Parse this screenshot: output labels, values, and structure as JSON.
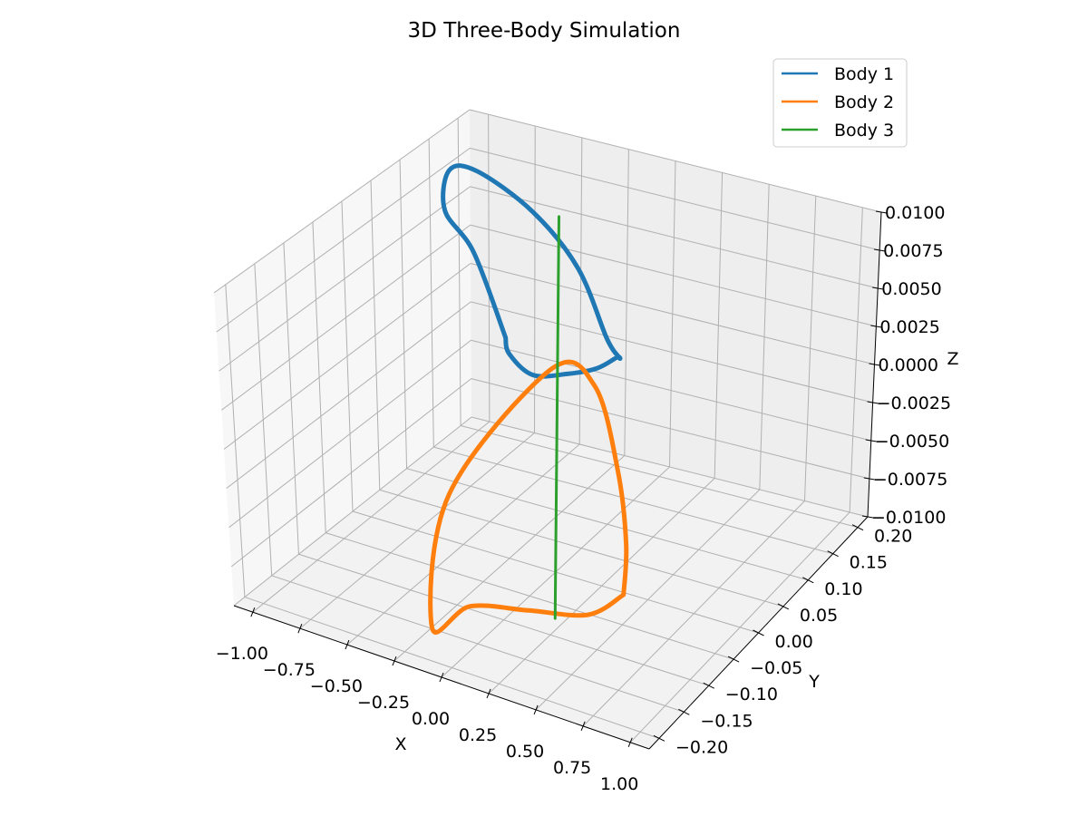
{
  "chart_data": {
    "type": "line3d",
    "title": "3D Three-Body Simulation",
    "xlabel": "X",
    "ylabel": "Y",
    "zlabel": "Z",
    "xlim": [
      -1.1,
      1.1
    ],
    "ylim": [
      -0.22,
      0.22
    ],
    "zlim": [
      -0.01,
      0.01
    ],
    "xticks": [
      "−1.00",
      "−0.75",
      "−0.50",
      "−0.25",
      "0.00",
      "0.25",
      "0.50",
      "0.75",
      "1.00"
    ],
    "yticks": [
      "−0.20",
      "−0.15",
      "−0.10",
      "−0.05",
      "0.00",
      "0.05",
      "0.10",
      "0.15",
      "0.20"
    ],
    "zticks": [
      "−0.0100",
      "−0.0075",
      "−0.0050",
      "−0.0025",
      "0.0000",
      "0.0025",
      "0.0050",
      "0.0075",
      "0.0100"
    ],
    "legend_position": "top-right",
    "series": [
      {
        "name": "Body 1",
        "color": "#1f77b4",
        "x": [
          -0.97,
          -0.9,
          -0.75,
          -0.55,
          -0.3,
          -0.05,
          0.1,
          0.12,
          0.05,
          -0.1,
          -0.35,
          -0.6,
          -0.82,
          -0.95,
          -0.97
        ],
        "y": [
          0.24,
          0.16,
          0.06,
          0.0,
          -0.04,
          -0.03,
          0.0,
          0.05,
          0.1,
          0.15,
          0.2,
          0.23,
          0.24,
          0.24,
          0.24
        ],
        "z": [
          -0.005,
          0.003,
          0.009,
          0.014,
          0.016,
          0.014,
          0.01,
          0.004,
          0.001,
          -0.001,
          -0.004,
          -0.006,
          -0.007,
          -0.006,
          -0.005
        ]
      },
      {
        "name": "Body 2",
        "color": "#ff7f0e",
        "x": [
          0.97,
          0.8,
          0.5,
          0.2,
          -0.05,
          -0.15,
          0.1,
          0.4,
          0.7,
          0.9,
          0.97
        ],
        "y": [
          -0.24,
          -0.24,
          -0.24,
          -0.24,
          -0.22,
          -0.15,
          -0.05,
          -0.08,
          -0.15,
          -0.21,
          -0.24
        ],
        "z": [
          0.0,
          -0.002,
          -0.003,
          -0.004,
          -0.007,
          -0.001,
          0.005,
          0.006,
          0.004,
          0.002,
          0.0
        ]
      },
      {
        "name": "Body 3",
        "color": "#2ca02c",
        "x": [
          0.0,
          0.0
        ],
        "y": [
          0.0,
          0.0
        ],
        "z": [
          -0.013,
          0.013
        ]
      }
    ]
  }
}
